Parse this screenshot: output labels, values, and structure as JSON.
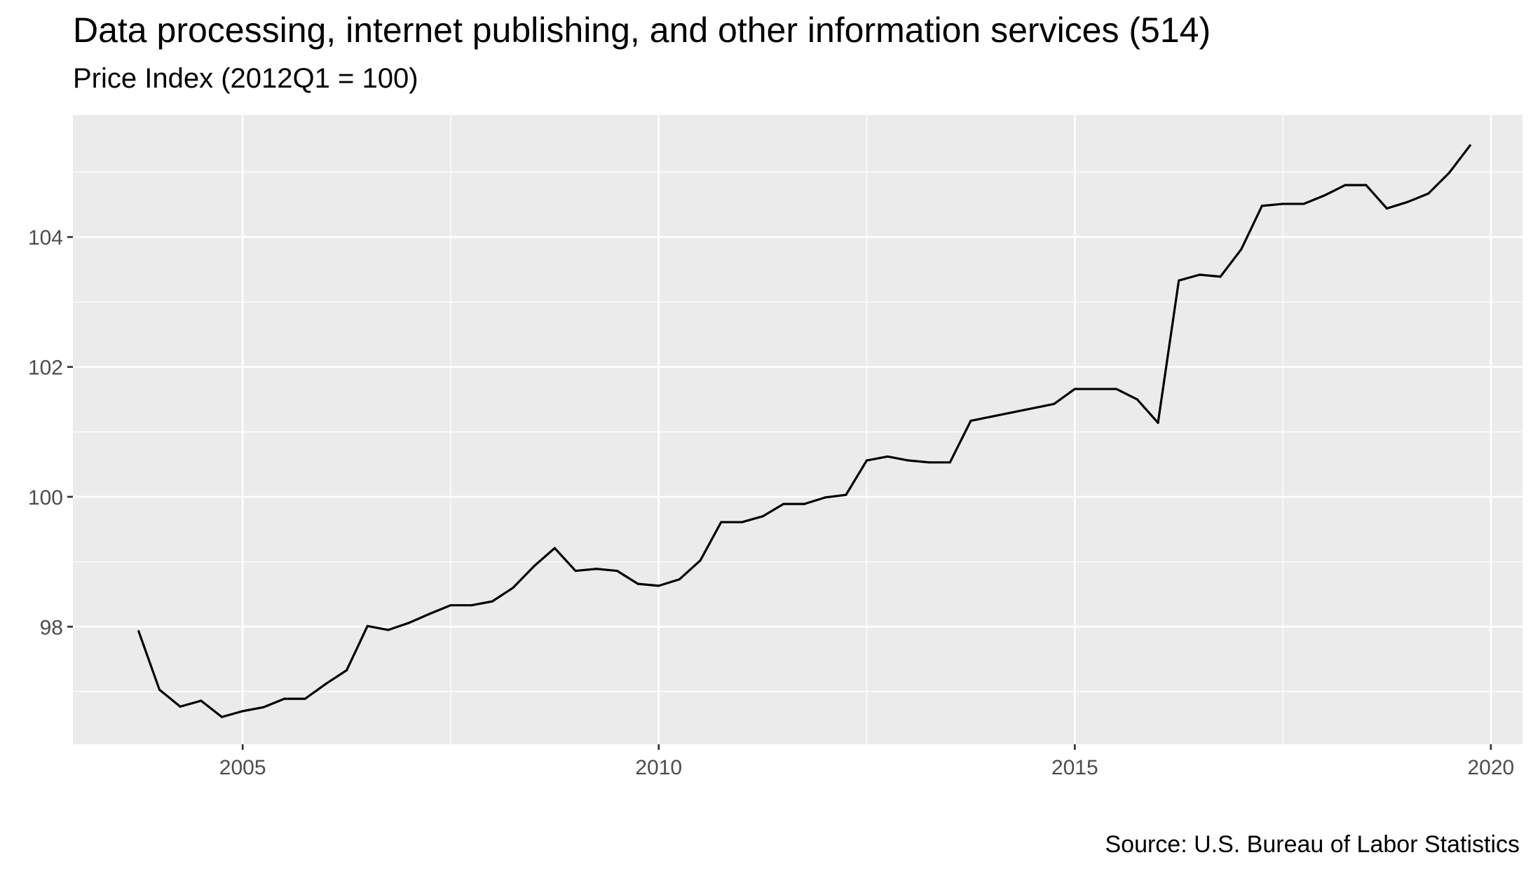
{
  "chart_data": {
    "type": "line",
    "title": "Data processing, internet publishing, and other information services (514)",
    "subtitle": "Price Index (2012Q1 = 100)",
    "caption": "Source: U.S. Bureau of Labor Statistics",
    "xlabel": "",
    "ylabel": "",
    "xlim": [
      2002.96,
      2020.38
    ],
    "ylim": [
      96.19,
      105.88
    ],
    "x_ticks": [
      2005,
      2010,
      2015,
      2020
    ],
    "y_ticks": [
      98,
      100,
      102,
      104
    ],
    "grid": true,
    "background": "#ebebeb",
    "grid_color": "#ffffff",
    "line_color": "#000000",
    "series": [
      {
        "x": [
          2003.75,
          2004.0,
          2004.25,
          2004.5,
          2004.75,
          2005.0,
          2005.25,
          2005.5,
          2005.75,
          2006.0,
          2006.25,
          2006.5,
          2006.75,
          2007.0,
          2007.25,
          2007.5,
          2007.75,
          2008.0,
          2008.25,
          2008.5,
          2008.75,
          2009.0,
          2009.25,
          2009.5,
          2009.75,
          2010.0,
          2010.25,
          2010.5,
          2010.75,
          2011.0,
          2011.25,
          2011.5,
          2011.75,
          2012.0,
          2012.25,
          2012.5,
          2012.75,
          2013.0,
          2013.25,
          2013.5,
          2013.75,
          2014.75,
          2015.0,
          2015.25,
          2015.5,
          2015.75,
          2016.0,
          2016.25,
          2016.5,
          2016.75,
          2017.0,
          2017.25,
          2017.5,
          2017.75,
          2018.0,
          2018.25,
          2018.5,
          2018.75,
          2019.0,
          2019.25,
          2019.5,
          2019.75
        ],
        "values": [
          97.93,
          97.03,
          96.77,
          96.86,
          96.61,
          96.7,
          96.76,
          96.89,
          96.89,
          97.12,
          97.33,
          98.01,
          97.95,
          98.06,
          98.2,
          98.33,
          98.33,
          98.39,
          98.6,
          98.93,
          99.21,
          98.86,
          98.89,
          98.86,
          98.66,
          98.63,
          98.73,
          99.02,
          99.61,
          99.61,
          99.7,
          99.89,
          99.89,
          99.99,
          100.03,
          100.56,
          100.62,
          100.56,
          100.53,
          100.53,
          101.17,
          101.43,
          101.66,
          101.66,
          101.66,
          101.5,
          101.14,
          103.33,
          103.42,
          103.39,
          103.81,
          104.48,
          104.51,
          104.51,
          104.64,
          104.8,
          104.8,
          104.44,
          104.54,
          104.67,
          104.99,
          105.41
        ]
      }
    ]
  }
}
